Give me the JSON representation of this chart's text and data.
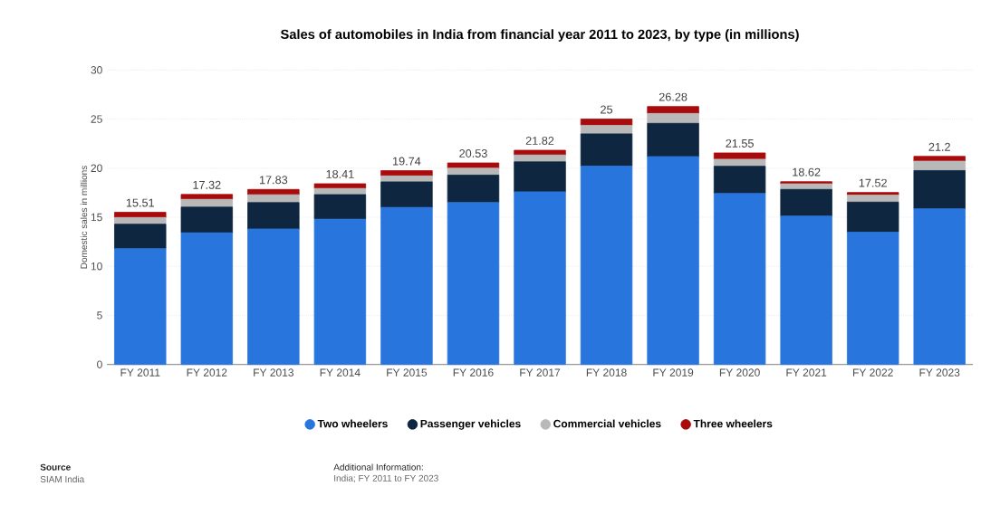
{
  "chart_data": {
    "type": "bar",
    "stacked": true,
    "title": "Sales of automobiles in India from financial year 2011 to 2023, by type (in millions)",
    "ylabel": "Domestic sales in millions",
    "categories": [
      "FY 2011",
      "FY 2012",
      "FY 2013",
      "FY 2014",
      "FY 2015",
      "FY 2016",
      "FY 2017",
      "FY 2018",
      "FY 2019",
      "FY 2020",
      "FY 2021",
      "FY 2022",
      "FY 2023"
    ],
    "series": [
      {
        "name": "Two wheelers",
        "color": "#2876dd",
        "values": [
          11.79,
          13.41,
          13.8,
          14.8,
          16.0,
          16.5,
          17.59,
          20.2,
          21.18,
          17.42,
          15.12,
          13.47,
          15.86
        ]
      },
      {
        "name": "Passenger vehicles",
        "color": "#0f2640",
        "values": [
          2.5,
          2.62,
          2.69,
          2.5,
          2.6,
          2.79,
          3.05,
          3.29,
          3.38,
          2.77,
          2.71,
          3.07,
          3.89
        ]
      },
      {
        "name": "Commercial vehicles",
        "color": "#b9b9b9",
        "values": [
          0.68,
          0.79,
          0.8,
          0.63,
          0.61,
          0.7,
          0.7,
          0.87,
          1.01,
          0.72,
          0.57,
          0.72,
          0.96
        ]
      },
      {
        "name": "Three wheelers",
        "color": "#a90b0d",
        "values": [
          0.53,
          0.5,
          0.54,
          0.48,
          0.53,
          0.54,
          0.48,
          0.64,
          0.71,
          0.64,
          0.22,
          0.26,
          0.49
        ]
      }
    ],
    "totals": [
      "15.51",
      "17.32",
      "17.83",
      "18.41",
      "19.74",
      "20.53",
      "21.82",
      "25",
      "26.28",
      "21.55",
      "18.62",
      "17.52",
      "21.2"
    ],
    "ylim": [
      0,
      30
    ],
    "yticks": [
      0,
      5,
      10,
      15,
      20,
      25,
      30
    ],
    "grid": "y",
    "legend": "bottom",
    "annotations": [
      "Source",
      "SIAM India",
      "Additional Information:",
      "India; FY 2011 to FY 2023"
    ]
  }
}
